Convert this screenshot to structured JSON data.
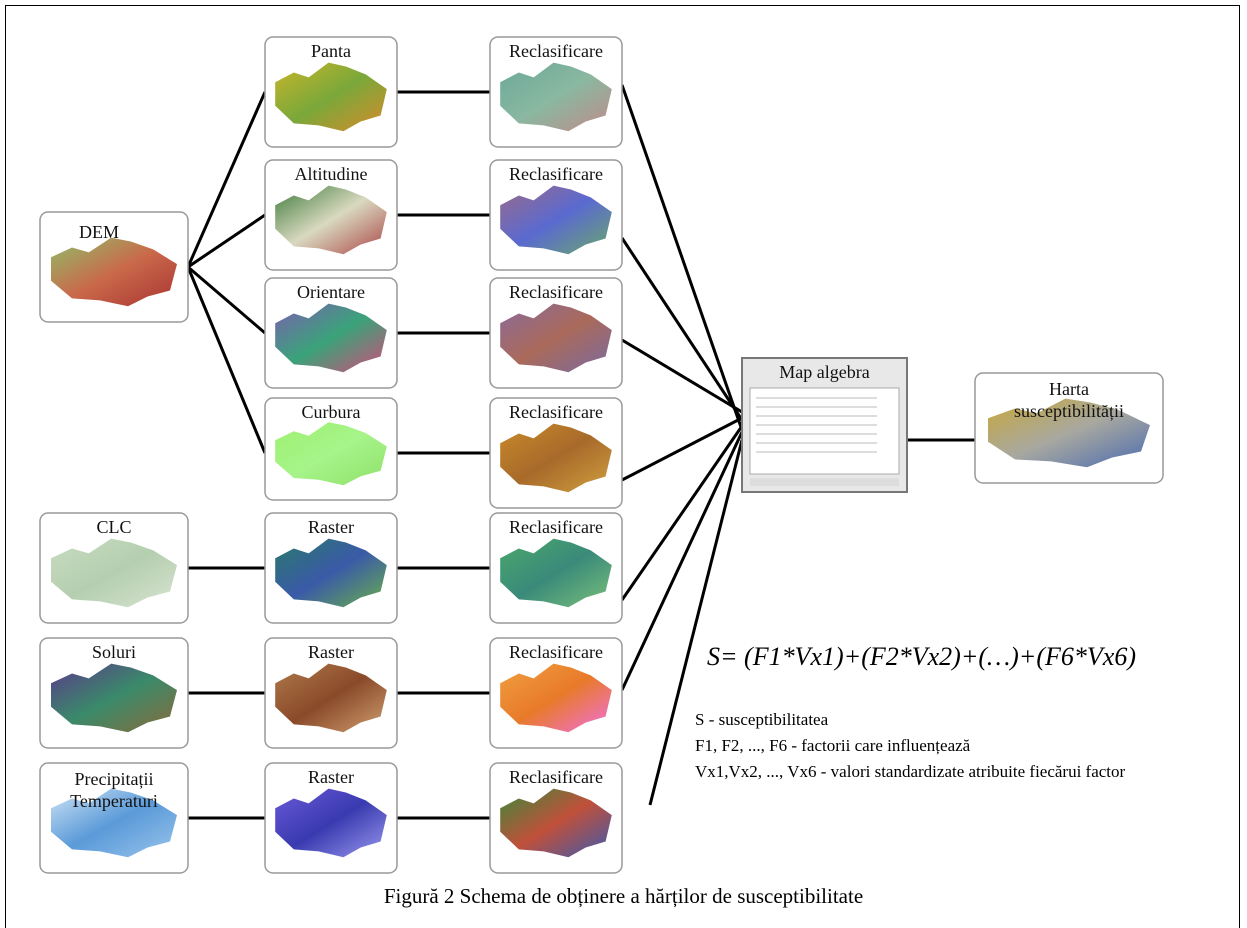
{
  "nodes": [
    {
      "label": "DEM"
    },
    {
      "label": "Panta"
    },
    {
      "label": "Altitudine"
    },
    {
      "label": "Orientare"
    },
    {
      "label": "Curbura"
    },
    {
      "label": "CLC"
    },
    {
      "label": "Soluri"
    },
    {
      "lines": [
        "Precipitații",
        "Temperaturi"
      ]
    },
    {
      "label": "Raster"
    },
    {
      "label": "Raster"
    },
    {
      "label": "Raster"
    },
    {
      "label": "Reclasificare"
    },
    {
      "label": "Reclasificare"
    },
    {
      "label": "Reclasificare"
    },
    {
      "label": "Reclasificare"
    },
    {
      "label": "Reclasificare"
    },
    {
      "label": "Reclasificare"
    },
    {
      "label": "Reclasificare"
    },
    {
      "label": "Map algebra"
    },
    {
      "lines": [
        "Harta",
        "susceptibilității"
      ]
    }
  ],
  "formula": "S= (F1*Vx1)+(F2*Vx2)+(…)+(F6*Vx6)",
  "legend": [
    "S - susceptibilitatea",
    "F1, F2, ..., F6 - factorii care influențează",
    "Vx1,Vx2, ..., Vx6 - valori standardizate atribuite fiecărui factor"
  ],
  "caption": "Figură 2 Schema de obținere a hărților de susceptibilitate"
}
